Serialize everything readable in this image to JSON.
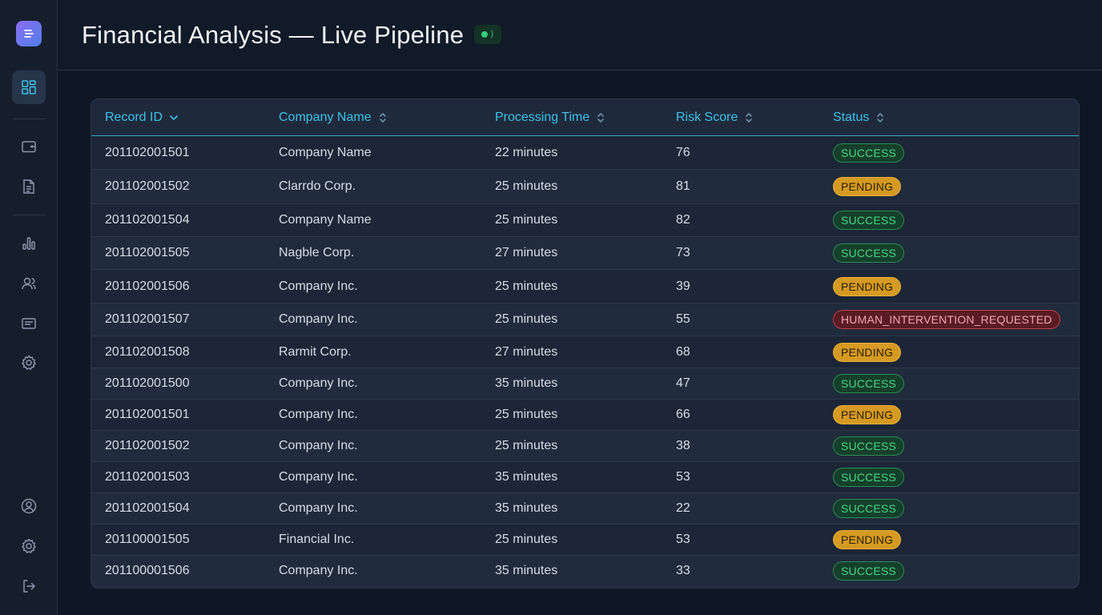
{
  "header": {
    "title": "Financial Analysis — Live Pipeline",
    "live_indicator": "live-signal-icon"
  },
  "colors": {
    "accent": "#3fc1e6",
    "success": "#46d784",
    "pending": "#d59a22",
    "danger": "#c0404e",
    "live": "#2fd07a"
  },
  "sidebar": {
    "logo": "logo-icon",
    "top_items": [
      {
        "icon": "dashboard-icon",
        "active": true
      },
      {
        "icon": "wallet-icon",
        "active": false
      },
      {
        "icon": "document-icon",
        "active": false
      },
      {
        "icon": "bar-chart-icon",
        "active": false
      },
      {
        "icon": "users-icon",
        "active": false
      },
      {
        "icon": "message-icon",
        "active": false
      },
      {
        "icon": "settings-icon",
        "active": false
      }
    ],
    "bottom_items": [
      {
        "icon": "user-circle-icon"
      },
      {
        "icon": "settings-icon"
      },
      {
        "icon": "logout-icon"
      }
    ]
  },
  "table": {
    "columns": [
      {
        "label": "Record ID",
        "sort": "desc-chevron-icon"
      },
      {
        "label": "Company Name",
        "sort": "sort-updown-icon"
      },
      {
        "label": "Processing Time",
        "sort": "sort-updown-icon"
      },
      {
        "label": "Risk Score",
        "sort": "sort-updown-icon"
      },
      {
        "label": "Status",
        "sort": "sort-updown-icon"
      }
    ],
    "rows": [
      {
        "id": "201102001501",
        "company": "Company Name",
        "time": "22 minutes",
        "risk": "76",
        "status": "SUCCESS"
      },
      {
        "id": "201102001502",
        "company": "Clarrdo Corp.",
        "time": "25 minutes",
        "risk": "81",
        "status": "PENDING"
      },
      {
        "id": "201102001504",
        "company": "Company Name",
        "time": "25 minutes",
        "risk": "82",
        "status": "SUCCESS"
      },
      {
        "id": "201102001505",
        "company": "Nagble Corp.",
        "time": "27 minutes",
        "risk": "73",
        "status": "SUCCESS"
      },
      {
        "id": "201102001506",
        "company": "Company Inc.",
        "time": "25 minutes",
        "risk": "39",
        "status": "PENDING"
      },
      {
        "id": "201102001507",
        "company": "Company Inc.",
        "time": "25 minutes",
        "risk": "55",
        "status": "HUMAN_INTERVENTION_REQUESTED"
      },
      {
        "id": "201102001508",
        "company": "Rarmit Corp.",
        "time": "27 minutes",
        "risk": "68",
        "status": "PENDING"
      },
      {
        "id": "201102001500",
        "company": "Company Inc.",
        "time": "35 minutes",
        "risk": "47",
        "status": "SUCCESS"
      },
      {
        "id": "201102001501",
        "company": "Company Inc.",
        "time": "25 minutes",
        "risk": "66",
        "status": "PENDING"
      },
      {
        "id": "201102001502",
        "company": "Company Inc.",
        "time": "25 minutes",
        "risk": "38",
        "status": "SUCCESS"
      },
      {
        "id": "201102001503",
        "company": "Company Inc.",
        "time": "35 minutes",
        "risk": "53",
        "status": "SUCCESS"
      },
      {
        "id": "201102001504",
        "company": "Company Inc.",
        "time": "35 minutes",
        "risk": "22",
        "status": "SUCCESS"
      },
      {
        "id": "201100001505",
        "company": "Financial Inc.",
        "time": "25 minutes",
        "risk": "53",
        "status": "PENDING"
      },
      {
        "id": "201100001506",
        "company": "Company Inc.",
        "time": "35 minutes",
        "risk": "33",
        "status": "SUCCESS"
      }
    ]
  }
}
